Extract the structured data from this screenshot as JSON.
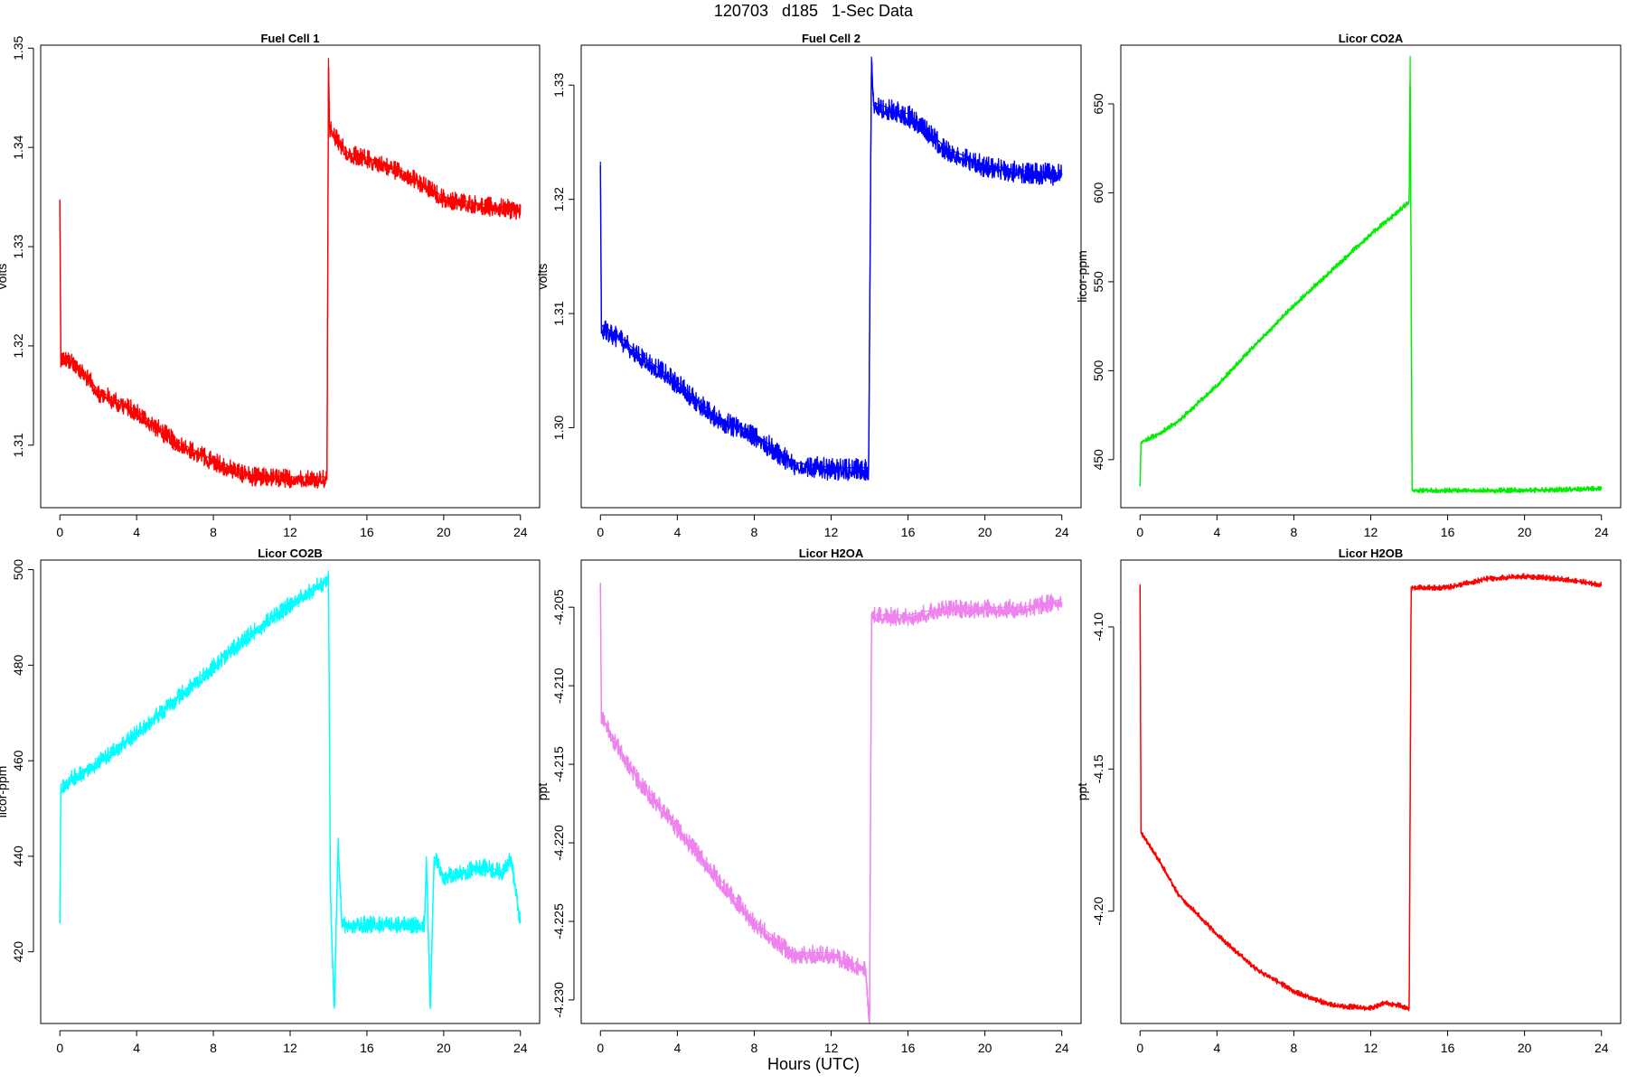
{
  "figure": {
    "title": "120703   d185   1-Sec Data",
    "xlabel": "Hours (UTC)"
  },
  "chart_data": [
    {
      "type": "line",
      "title": "Fuel Cell 1",
      "xlabel": "",
      "ylabel": "volts",
      "xlim": [
        -1,
        25
      ],
      "ylim": [
        1.3037,
        1.3503
      ],
      "xticks": [
        0,
        4,
        8,
        12,
        16,
        20,
        24
      ],
      "xtick_labels": [
        "0",
        "4",
        "8",
        "12",
        "16",
        "20",
        "24"
      ],
      "yticks": [
        1.31,
        1.32,
        1.33,
        1.34,
        1.35
      ],
      "ytick_labels": [
        "1.31",
        "1.32",
        "1.33",
        "1.34",
        "1.35"
      ],
      "color": "#ff0000",
      "noise": 0.0008,
      "points": [
        [
          0,
          1.3345
        ],
        [
          0.05,
          1.319
        ],
        [
          1,
          1.318
        ],
        [
          2,
          1.3155
        ],
        [
          4,
          1.3135
        ],
        [
          6,
          1.3105
        ],
        [
          8,
          1.3085
        ],
        [
          10,
          1.307
        ],
        [
          12,
          1.3068
        ],
        [
          13.9,
          1.3068
        ],
        [
          13.92,
          1.3065
        ],
        [
          14,
          1.349
        ],
        [
          14.05,
          1.342
        ],
        [
          15,
          1.3395
        ],
        [
          16,
          1.339
        ],
        [
          18,
          1.3375
        ],
        [
          20,
          1.335
        ],
        [
          22,
          1.3343
        ],
        [
          24,
          1.3338
        ]
      ]
    },
    {
      "type": "line",
      "title": "Fuel Cell 2",
      "xlabel": "",
      "ylabel": "volts",
      "xlim": [
        -1,
        25
      ],
      "ylim": [
        1.293,
        1.3335
      ],
      "xticks": [
        0,
        4,
        8,
        12,
        16,
        20,
        24
      ],
      "xtick_labels": [
        "0",
        "4",
        "8",
        "12",
        "16",
        "20",
        "24"
      ],
      "yticks": [
        1.3,
        1.31,
        1.32,
        1.33
      ],
      "ytick_labels": [
        "1.30",
        "1.31",
        "1.32",
        "1.33"
      ],
      "color": "#0000ff",
      "noise": 0.0008,
      "points": [
        [
          0,
          1.3233
        ],
        [
          0.05,
          1.309
        ],
        [
          1,
          1.308
        ],
        [
          2,
          1.3065
        ],
        [
          4,
          1.304
        ],
        [
          6,
          1.301
        ],
        [
          8,
          1.2995
        ],
        [
          10,
          1.297
        ],
        [
          12,
          1.2965
        ],
        [
          13.9,
          1.2965
        ],
        [
          13.95,
          1.296
        ],
        [
          14.1,
          1.3325
        ],
        [
          14.2,
          1.3285
        ],
        [
          15,
          1.328
        ],
        [
          16,
          1.3275
        ],
        [
          18,
          1.3245
        ],
        [
          20,
          1.323
        ],
        [
          22,
          1.3225
        ],
        [
          24,
          1.3223
        ]
      ]
    },
    {
      "type": "line",
      "title": "Licor CO2A",
      "xlabel": "",
      "ylabel": "licor-ppm",
      "xlim": [
        -1,
        25
      ],
      "ylim": [
        423,
        683
      ],
      "xticks": [
        0,
        4,
        8,
        12,
        16,
        20,
        24
      ],
      "xtick_labels": [
        "0",
        "4",
        "8",
        "12",
        "16",
        "20",
        "24"
      ],
      "yticks": [
        450,
        500,
        550,
        600,
        650
      ],
      "ytick_labels": [
        "450",
        "500",
        "550",
        "600",
        "650"
      ],
      "color": "#00ee00",
      "noise": 1.2,
      "points": [
        [
          0,
          435
        ],
        [
          0.05,
          460
        ],
        [
          1,
          465
        ],
        [
          2,
          472
        ],
        [
          4,
          492
        ],
        [
          6,
          515
        ],
        [
          8,
          537
        ],
        [
          10,
          557
        ],
        [
          12,
          577
        ],
        [
          14,
          595
        ],
        [
          14.05,
          677
        ],
        [
          14.15,
          433
        ],
        [
          16,
          433
        ],
        [
          20,
          433
        ],
        [
          24,
          434
        ]
      ]
    },
    {
      "type": "line",
      "title": "Licor CO2B",
      "xlabel": "",
      "ylabel": "licor-ppm",
      "xlim": [
        -1,
        25
      ],
      "ylim": [
        405,
        502
      ],
      "xticks": [
        0,
        4,
        8,
        12,
        16,
        20,
        24
      ],
      "xtick_labels": [
        "0",
        "4",
        "8",
        "12",
        "16",
        "20",
        "24"
      ],
      "yticks": [
        420,
        440,
        460,
        480,
        500
      ],
      "ytick_labels": [
        "420",
        "440",
        "460",
        "480",
        "500"
      ],
      "color": "#00ffff",
      "noise": 1.5,
      "points": [
        [
          0,
          427
        ],
        [
          0.05,
          455
        ],
        [
          2,
          460
        ],
        [
          4,
          466
        ],
        [
          6,
          473
        ],
        [
          8,
          480
        ],
        [
          10,
          487
        ],
        [
          12,
          493
        ],
        [
          13.9,
          498
        ],
        [
          14,
          499
        ],
        [
          14.1,
          432
        ],
        [
          14.3,
          408
        ],
        [
          14.5,
          443
        ],
        [
          14.7,
          426
        ],
        [
          16,
          426
        ],
        [
          18,
          426
        ],
        [
          19,
          426
        ],
        [
          19.1,
          440
        ],
        [
          19.3,
          408
        ],
        [
          19.5,
          440
        ],
        [
          20,
          436
        ],
        [
          22,
          438
        ],
        [
          23,
          437
        ],
        [
          23.5,
          440
        ],
        [
          24,
          426
        ]
      ]
    },
    {
      "type": "line",
      "title": "Licor H2OA",
      "xlabel": "",
      "ylabel": "ppt",
      "xlim": [
        -1,
        25
      ],
      "ylim": [
        -4.2315,
        -4.202
      ],
      "xticks": [
        0,
        4,
        8,
        12,
        16,
        20,
        24
      ],
      "xtick_labels": [
        "0",
        "4",
        "8",
        "12",
        "16",
        "20",
        "24"
      ],
      "yticks": [
        -4.23,
        -4.225,
        -4.22,
        -4.215,
        -4.21,
        -4.205
      ],
      "ytick_labels": [
        "-4.230",
        "-4.225",
        "-4.220",
        "-4.215",
        "-4.210",
        "-4.205"
      ],
      "color": "#ee82ee",
      "noise": 0.0005,
      "points": [
        [
          0,
          -4.2035
        ],
        [
          0.05,
          -4.212
        ],
        [
          1,
          -4.214
        ],
        [
          2,
          -4.216
        ],
        [
          4,
          -4.219
        ],
        [
          6,
          -4.222
        ],
        [
          8,
          -4.225
        ],
        [
          10,
          -4.227
        ],
        [
          12,
          -4.227
        ],
        [
          13.8,
          -4.228
        ],
        [
          14,
          -4.2315
        ],
        [
          14.1,
          -4.2055
        ],
        [
          16,
          -4.2055
        ],
        [
          18,
          -4.205
        ],
        [
          20,
          -4.205
        ],
        [
          22,
          -4.205
        ],
        [
          24,
          -4.2045
        ]
      ]
    },
    {
      "type": "line",
      "title": "Licor H2OB",
      "xlabel": "",
      "ylabel": "ppt",
      "xlim": [
        -1,
        25
      ],
      "ylim": [
        -4.2395,
        -4.0765
      ],
      "xticks": [
        0,
        4,
        8,
        12,
        16,
        20,
        24
      ],
      "xtick_labels": [
        "0",
        "4",
        "8",
        "12",
        "16",
        "20",
        "24"
      ],
      "yticks": [
        -4.2,
        -4.15,
        -4.1
      ],
      "ytick_labels": [
        "-4.20",
        "-4.15",
        "-4.10"
      ],
      "color": "#ff0000",
      "noise": 0.0008,
      "points": [
        [
          0,
          -4.085
        ],
        [
          0.05,
          -4.172
        ],
        [
          1,
          -4.182
        ],
        [
          2,
          -4.194
        ],
        [
          4,
          -4.208
        ],
        [
          6,
          -4.22
        ],
        [
          8,
          -4.228
        ],
        [
          10,
          -4.233
        ],
        [
          12,
          -4.234
        ],
        [
          12.7,
          -4.232
        ],
        [
          13.5,
          -4.233
        ],
        [
          14,
          -4.234
        ],
        [
          14.1,
          -4.086
        ],
        [
          16,
          -4.086
        ],
        [
          18,
          -4.083
        ],
        [
          20,
          -4.082
        ],
        [
          22,
          -4.083
        ],
        [
          24,
          -4.085
        ]
      ]
    }
  ]
}
